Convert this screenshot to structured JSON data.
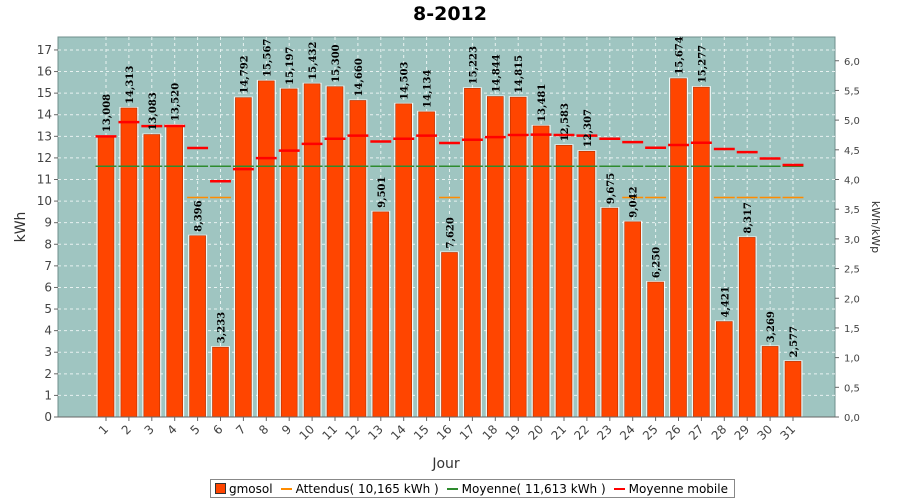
{
  "chart_data": {
    "type": "bar",
    "title": "8-2012",
    "xlabel": "Jour",
    "ylabel": "kWh",
    "y2label": "kWh/kWp",
    "ylim": [
      0,
      17.6
    ],
    "y2lim": [
      0,
      6.4
    ],
    "grid": true,
    "legend_position": "bottom",
    "categories": [
      "1",
      "2",
      "3",
      "4",
      "5",
      "6",
      "7",
      "8",
      "9",
      "10",
      "11",
      "12",
      "13",
      "14",
      "15",
      "16",
      "17",
      "18",
      "19",
      "20",
      "21",
      "22",
      "23",
      "24",
      "25",
      "26",
      "27",
      "28",
      "29",
      "30",
      "31"
    ],
    "yticks": [
      "0",
      "1",
      "2",
      "3",
      "4",
      "5",
      "6",
      "7",
      "8",
      "9",
      "10",
      "11",
      "12",
      "13",
      "14",
      "15",
      "16",
      "17"
    ],
    "y2ticks": [
      "0,0",
      "0,5",
      "1,0",
      "1,5",
      "2,0",
      "2,5",
      "3,0",
      "3,5",
      "4,0",
      "4,5",
      "5,0",
      "5,5",
      "6,0"
    ],
    "series": [
      {
        "name": "gmosol",
        "kind": "bar",
        "color": "#ff4500",
        "values": [
          13.008,
          14.313,
          13.083,
          13.52,
          8.396,
          3.233,
          14.792,
          15.567,
          15.197,
          15.432,
          15.3,
          14.66,
          9.501,
          14.503,
          14.134,
          7.62,
          15.223,
          14.844,
          14.815,
          13.481,
          12.583,
          12.307,
          9.675,
          9.042,
          6.25,
          15.674,
          15.277,
          4.421,
          8.317,
          3.269,
          2.577
        ],
        "labels": [
          "13,008",
          "14,313",
          "13,083",
          "13,520",
          "8,396",
          "3,233",
          "14,792",
          "15,567",
          "15,197",
          "15,432",
          "15,300",
          "14,660",
          "9,501",
          "14,503",
          "14,134",
          "7,620",
          "15,223",
          "14,844",
          "14,815",
          "13,481",
          "12,583",
          "12,307",
          "9,675",
          "9,042",
          "6,250",
          "15,674",
          "15,277",
          "4,421",
          "8,317",
          "3,269",
          "2,577"
        ]
      },
      {
        "name": "Attendus( 10,165 kWh )",
        "kind": "step",
        "color": "#ff8c00",
        "values": [
          null,
          null,
          null,
          null,
          10.165,
          10.165,
          null,
          null,
          null,
          null,
          null,
          null,
          null,
          null,
          null,
          10.165,
          null,
          null,
          null,
          null,
          null,
          null,
          null,
          10.165,
          10.165,
          null,
          null,
          10.165,
          10.165,
          10.165,
          10.165
        ]
      },
      {
        "name": "Moyenne( 11,613 kWh )",
        "kind": "step",
        "color": "#2e8b2e",
        "values": [
          11.613,
          11.613,
          11.613,
          11.613,
          11.613,
          11.613,
          11.613,
          11.613,
          11.613,
          11.613,
          11.613,
          11.613,
          11.613,
          11.613,
          11.613,
          11.613,
          11.613,
          11.613,
          11.613,
          11.613,
          11.613,
          11.613,
          11.613,
          11.613,
          11.613,
          11.613,
          11.613,
          11.613,
          11.613,
          11.613,
          11.613
        ]
      },
      {
        "name": "Moyenne mobile",
        "kind": "step",
        "color": "#ff0000",
        "values": [
          13.0,
          13.66,
          13.47,
          13.48,
          12.46,
          10.92,
          11.48,
          11.99,
          12.34,
          12.65,
          12.89,
          13.03,
          12.76,
          12.89,
          13.03,
          12.69,
          12.84,
          12.96,
          13.06,
          13.08,
          13.06,
          13.03,
          12.89,
          12.73,
          12.47,
          12.6,
          12.7,
          12.41,
          12.27,
          11.97,
          11.67
        ]
      }
    ]
  }
}
